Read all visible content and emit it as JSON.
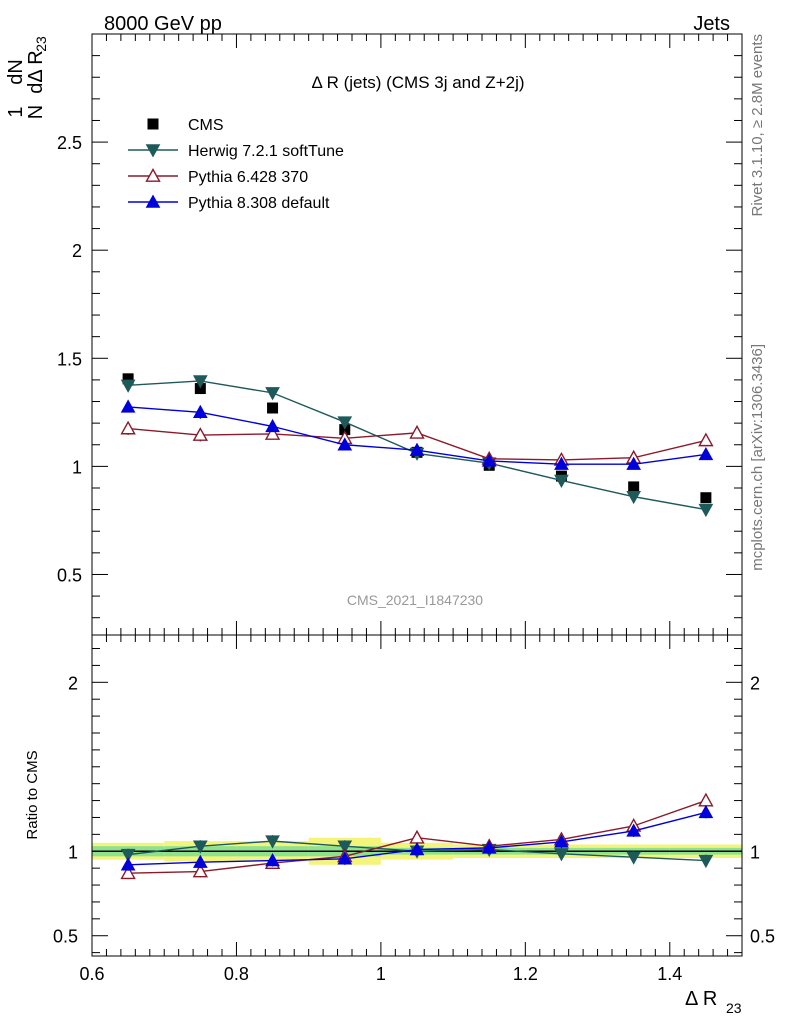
{
  "header": {
    "left": "8000 GeV pp",
    "right": "Jets"
  },
  "side_labels": {
    "rivet": "Rivet 3.1.10, ≥ 2.8M events",
    "mcplots": "mcplots.cern.ch [arXiv:1306.3436]"
  },
  "watermark": "CMS_2021_I1847230",
  "chart_data": [
    {
      "type": "line",
      "panel": "main",
      "title": "Δ R (jets) (CMS 3j and Z+2j)",
      "ylabel": {
        "fraction_num": "1",
        "fraction_den": "N",
        "main": "dN",
        "den_prefix": "dΔ R",
        "den_sub": "23"
      },
      "xlim": [
        0.6,
        1.5
      ],
      "ylim": [
        0.22,
        3.0
      ],
      "yticks": [
        0.5,
        1,
        1.5,
        2,
        2.5
      ],
      "ytick_labels": [
        "0.5",
        "1",
        "1.5",
        "2",
        "2.5"
      ],
      "legend_position": "top-left",
      "x": [
        0.65,
        0.75,
        0.85,
        0.95,
        1.05,
        1.15,
        1.25,
        1.35,
        1.45
      ],
      "series": [
        {
          "name": "CMS",
          "marker": "square",
          "color": "#000000",
          "values": [
            1.405,
            1.36,
            1.27,
            1.17,
            1.065,
            1.005,
            0.955,
            0.905,
            0.855
          ],
          "errors": [
            0.01,
            0.01,
            0.01,
            0.01,
            0.01,
            0.01,
            0.01,
            0.01,
            0.01
          ]
        },
        {
          "name": "Herwig 7.2.1 softTune",
          "marker": "triangle-down",
          "color": "#1e5a5a",
          "values": [
            1.375,
            1.395,
            1.34,
            1.205,
            1.06,
            1.015,
            0.935,
            0.86,
            0.8
          ],
          "errors": [
            0.025,
            0.025,
            0.025,
            0.02,
            0.02,
            0.02,
            0.025,
            0.025,
            0.025
          ]
        },
        {
          "name": "Pythia 6.428 370",
          "marker": "triangle-up-open",
          "color": "#8b1a2b",
          "values": [
            1.175,
            1.145,
            1.15,
            1.13,
            1.155,
            1.035,
            1.03,
            1.04,
            1.12
          ],
          "errors": [
            0.03,
            0.03,
            0.025,
            0.025,
            0.025,
            0.025,
            0.025,
            0.025,
            0.025
          ]
        },
        {
          "name": "Pythia 8.308 default",
          "marker": "triangle-up",
          "color": "#0000dd",
          "values": [
            1.275,
            1.25,
            1.185,
            1.1,
            1.075,
            1.025,
            1.01,
            1.01,
            1.055
          ],
          "errors": [
            0.025,
            0.03,
            0.025,
            0.02,
            0.02,
            0.02,
            0.02,
            0.02,
            0.02
          ]
        }
      ]
    },
    {
      "type": "line",
      "panel": "ratio",
      "ylabel": "Ratio to CMS",
      "xlabel": {
        "main": "Δ R",
        "sub": "23"
      },
      "xlim": [
        0.6,
        1.5
      ],
      "ylim": [
        0.38,
        2.28
      ],
      "yticks": [
        0.5,
        1,
        2
      ],
      "ytick_labels": [
        "0.5",
        "1",
        "2"
      ],
      "xticks": [
        0.6,
        0.8,
        1.0,
        1.2,
        1.4
      ],
      "xtick_labels": [
        "0.6",
        "0.8",
        "1",
        "1.2",
        "1.4"
      ],
      "x": [
        0.65,
        0.75,
        0.85,
        0.95,
        1.05,
        1.15,
        1.25,
        1.35,
        1.45
      ],
      "band_inner": [
        0.03,
        0.03,
        0.03,
        0.03,
        0.02,
        0.02,
        0.02,
        0.02,
        0.02
      ],
      "band_outer": [
        0.05,
        0.06,
        0.06,
        0.08,
        0.05,
        0.04,
        0.04,
        0.04,
        0.04
      ],
      "series": [
        {
          "name": "Herwig 7.2.1 softTune",
          "marker": "triangle-down",
          "color": "#1e5a5a",
          "values": [
            0.98,
            1.03,
            1.06,
            1.03,
            1.0,
            1.01,
            0.985,
            0.965,
            0.945
          ]
        },
        {
          "name": "Pythia 6.428 370",
          "marker": "triangle-up-open",
          "color": "#8b1a2b",
          "values": [
            0.87,
            0.88,
            0.93,
            0.97,
            1.08,
            1.03,
            1.07,
            1.15,
            1.3
          ]
        },
        {
          "name": "Pythia 8.308 default",
          "marker": "triangle-up",
          "color": "#0000dd",
          "values": [
            0.92,
            0.935,
            0.945,
            0.955,
            1.01,
            1.02,
            1.055,
            1.12,
            1.23
          ]
        }
      ]
    }
  ]
}
